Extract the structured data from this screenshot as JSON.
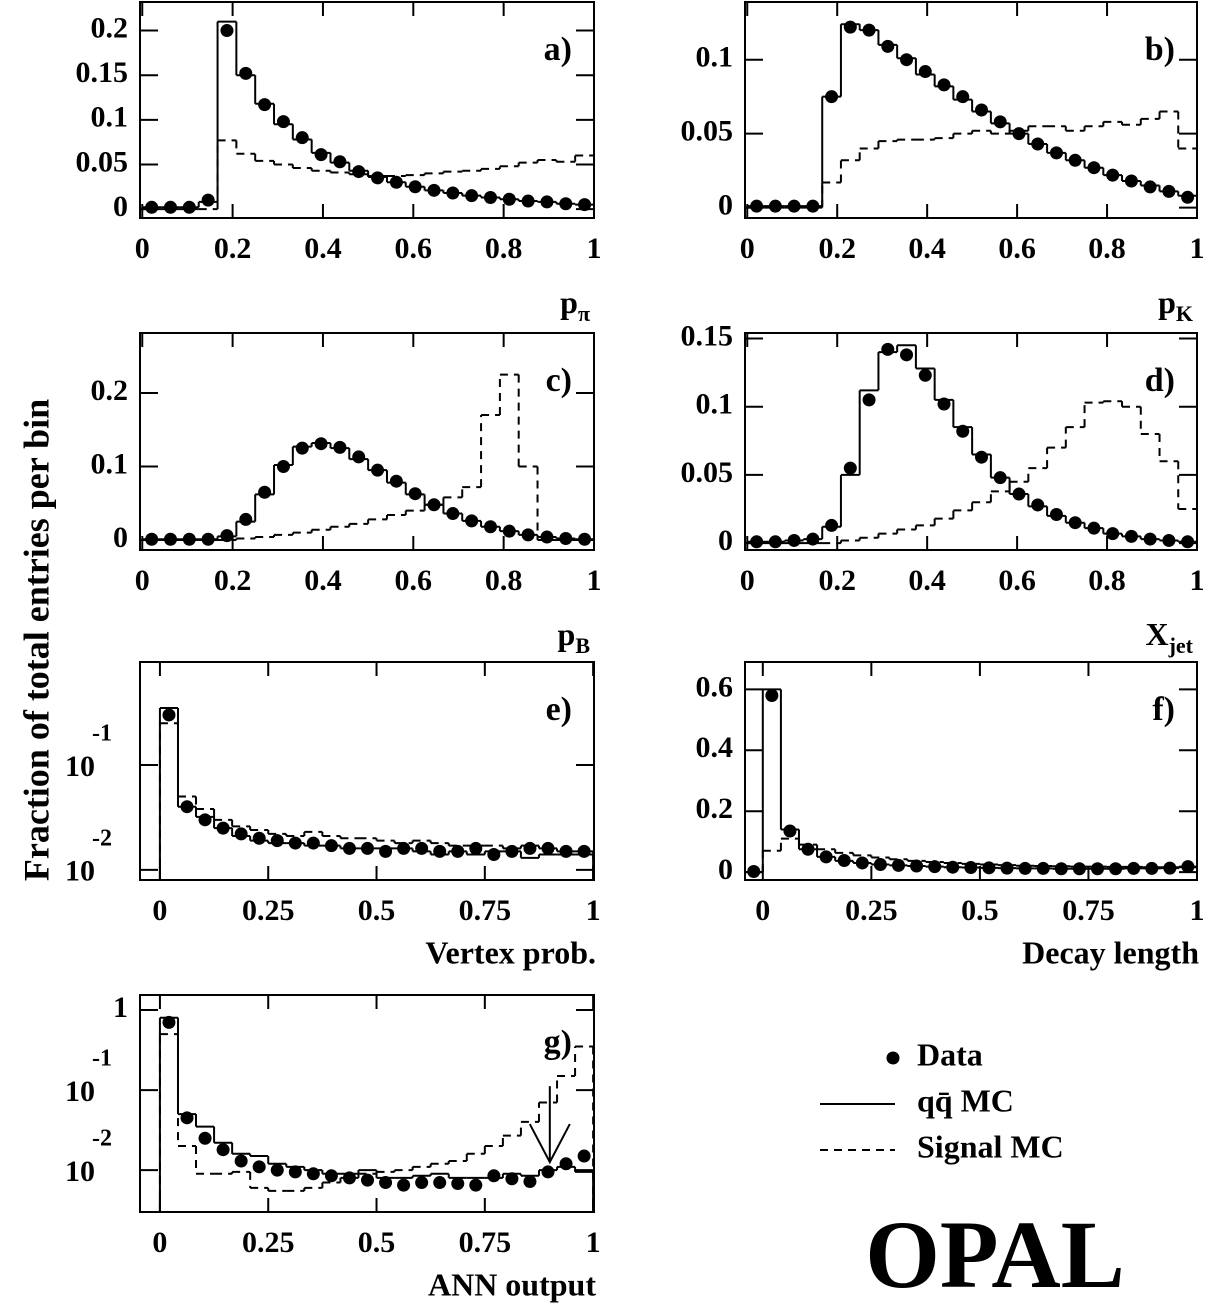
{
  "ylabel": "Fraction of total entries per bin",
  "logo": "OPAL",
  "legend": {
    "entries": [
      "Data",
      "qq̄ MC",
      "Signal MC"
    ],
    "styles": [
      "dot",
      "solid",
      "dashed"
    ]
  },
  "chart_data": [
    {
      "type": "histogram",
      "label": "a)",
      "xlabel": "p",
      "xlabel_sub": "π",
      "ylog": false,
      "xlim": [
        -0.005,
        1
      ],
      "ylim": [
        -0.01,
        0.232
      ],
      "xticks": [
        0,
        0.2,
        0.4,
        0.6,
        0.8,
        1
      ],
      "yticks": [
        0,
        0.05,
        0.1,
        0.15,
        0.2
      ],
      "bins": [
        0,
        0.0417,
        0.0833,
        0.125,
        0.1667,
        0.2083,
        0.25,
        0.2917,
        0.3333,
        0.375,
        0.4167,
        0.4583,
        0.5,
        0.5417,
        0.5833,
        0.625,
        0.6667,
        0.7083,
        0.75,
        0.7917,
        0.8333,
        0.875,
        0.9167,
        0.9583,
        1
      ],
      "series": [
        {
          "values": [
            0.002,
            0.002,
            0.002,
            0.01,
            0.2,
            0.152,
            0.117,
            0.098,
            0.08,
            0.061,
            0.053,
            0.042,
            0.035,
            0.03,
            0.025,
            0.021,
            0.018,
            0.015,
            0.013,
            0.011,
            0.009,
            0.008,
            0.006,
            0.005
          ]
        },
        {
          "values": [
            0.002,
            0.002,
            0.002,
            0.008,
            0.21,
            0.15,
            0.118,
            0.095,
            0.078,
            0.063,
            0.052,
            0.043,
            0.036,
            0.03,
            0.025,
            0.021,
            0.018,
            0.015,
            0.013,
            0.011,
            0.009,
            0.008,
            0.006,
            0.005
          ]
        },
        {
          "values": [
            0,
            0,
            0,
            0,
            0.077,
            0.062,
            0.054,
            0.05,
            0.046,
            0.043,
            0.041,
            0.039,
            0.037,
            0.037,
            0.038,
            0.04,
            0.042,
            0.043,
            0.045,
            0.048,
            0.052,
            0.055,
            0.053,
            0.06
          ]
        }
      ]
    },
    {
      "type": "histogram",
      "label": "b)",
      "xlabel": "p",
      "xlabel_sub": "K",
      "ylog": false,
      "xlim": [
        -0.005,
        1
      ],
      "ylim": [
        -0.007,
        0.139
      ],
      "xticks": [
        0,
        0.2,
        0.4,
        0.6,
        0.8,
        1
      ],
      "yticks": [
        0,
        0.05,
        0.1
      ],
      "bins": [
        0,
        0.0417,
        0.0833,
        0.125,
        0.1667,
        0.2083,
        0.25,
        0.2917,
        0.3333,
        0.375,
        0.4167,
        0.4583,
        0.5,
        0.5417,
        0.5833,
        0.625,
        0.6667,
        0.7083,
        0.75,
        0.7917,
        0.8333,
        0.875,
        0.9167,
        0.9583,
        1
      ],
      "series": [
        {
          "values": [
            0.001,
            0.001,
            0.001,
            0.001,
            0.075,
            0.122,
            0.12,
            0.109,
            0.1,
            0.092,
            0.083,
            0.075,
            0.066,
            0.058,
            0.05,
            0.043,
            0.037,
            0.032,
            0.027,
            0.022,
            0.018,
            0.014,
            0.011,
            0.007
          ]
        },
        {
          "values": [
            0.001,
            0.001,
            0.001,
            0.001,
            0.075,
            0.124,
            0.12,
            0.11,
            0.101,
            0.09,
            0.082,
            0.073,
            0.065,
            0.057,
            0.05,
            0.043,
            0.037,
            0.032,
            0.027,
            0.022,
            0.018,
            0.015,
            0.011,
            0.008
          ]
        },
        {
          "values": [
            0,
            0,
            0,
            0,
            0.017,
            0.032,
            0.04,
            0.045,
            0.046,
            0.046,
            0.047,
            0.05,
            0.052,
            0.05,
            0.052,
            0.055,
            0.055,
            0.052,
            0.055,
            0.058,
            0.056,
            0.06,
            0.065,
            0.04
          ]
        }
      ]
    },
    {
      "type": "histogram",
      "label": "c)",
      "xlabel": "p",
      "xlabel_sub": "B",
      "ylog": false,
      "xlim": [
        -0.005,
        1
      ],
      "ylim": [
        -0.0136,
        0.2816
      ],
      "xticks": [
        0,
        0.2,
        0.4,
        0.6,
        0.8,
        1
      ],
      "yticks": [
        0,
        0.1,
        0.2
      ],
      "bins": [
        0,
        0.0417,
        0.0833,
        0.125,
        0.1667,
        0.2083,
        0.25,
        0.2917,
        0.3333,
        0.375,
        0.4167,
        0.4583,
        0.5,
        0.5417,
        0.5833,
        0.625,
        0.6667,
        0.7083,
        0.75,
        0.7917,
        0.8333,
        0.875,
        0.9167,
        0.9583,
        1
      ],
      "series": [
        {
          "values": [
            0.001,
            0.001,
            0.001,
            0.001,
            0.006,
            0.028,
            0.065,
            0.1,
            0.125,
            0.131,
            0.126,
            0.113,
            0.095,
            0.08,
            0.063,
            0.048,
            0.036,
            0.026,
            0.018,
            0.012,
            0.007,
            0.004,
            0.002,
            0.001
          ]
        },
        {
          "values": [
            0.001,
            0.001,
            0.001,
            0.001,
            0.005,
            0.025,
            0.062,
            0.102,
            0.127,
            0.132,
            0.125,
            0.11,
            0.095,
            0.078,
            0.062,
            0.048,
            0.036,
            0.026,
            0.018,
            0.012,
            0.007,
            0.004,
            0.002,
            0.001
          ]
        },
        {
          "values": [
            0,
            0,
            0,
            0,
            0,
            0.002,
            0.004,
            0.007,
            0.01,
            0.014,
            0.018,
            0.022,
            0.028,
            0.034,
            0.04,
            0.048,
            0.058,
            0.072,
            0.17,
            0.225,
            0.1,
            0,
            0,
            0
          ]
        }
      ]
    },
    {
      "type": "histogram",
      "label": "d)",
      "xlabel": "X",
      "xlabel_sub": "jet",
      "ylog": false,
      "xlim": [
        -0.005,
        1
      ],
      "ylim": [
        -0.005,
        0.154
      ],
      "xticks": [
        0,
        0.2,
        0.4,
        0.6,
        0.8,
        1
      ],
      "yticks": [
        0,
        0.05,
        0.1,
        0.15
      ],
      "bins": [
        0,
        0.0417,
        0.0833,
        0.125,
        0.1667,
        0.2083,
        0.25,
        0.2917,
        0.3333,
        0.375,
        0.4167,
        0.4583,
        0.5,
        0.5417,
        0.5833,
        0.625,
        0.6667,
        0.7083,
        0.75,
        0.7917,
        0.8333,
        0.875,
        0.9167,
        0.9583,
        1
      ],
      "series": [
        {
          "values": [
            0.001,
            0.001,
            0.002,
            0.003,
            0.013,
            0.055,
            0.105,
            0.142,
            0.138,
            0.123,
            0.102,
            0.082,
            0.063,
            0.048,
            0.036,
            0.028,
            0.021,
            0.015,
            0.011,
            0.007,
            0.005,
            0.003,
            0.002,
            0.001
          ]
        },
        {
          "values": [
            0.001,
            0.001,
            0.002,
            0.003,
            0.012,
            0.05,
            0.112,
            0.14,
            0.145,
            0.128,
            0.105,
            0.085,
            0.065,
            0.048,
            0.036,
            0.027,
            0.02,
            0.015,
            0.011,
            0.007,
            0.005,
            0.003,
            0.002,
            0.001
          ]
        },
        {
          "values": [
            0,
            0,
            0,
            0,
            0,
            0.002,
            0.004,
            0.007,
            0.01,
            0.013,
            0.018,
            0.024,
            0.03,
            0.038,
            0.045,
            0.055,
            0.07,
            0.085,
            0.103,
            0.104,
            0.1,
            0.08,
            0.06,
            0.025
          ]
        }
      ]
    },
    {
      "type": "histogram",
      "label": "e)",
      "xlabel": "Vertex prob.",
      "ylog": true,
      "xlim": [
        -0.046,
        1.002
      ],
      "ylim": [
        0.008,
        0.96
      ],
      "xticks": [
        0,
        0.25,
        0.5,
        0.75,
        1
      ],
      "yticks": [
        {
          "value": 0.1,
          "label": "10",
          "exponent": "-1"
        },
        {
          "value": 0.01,
          "label": "10",
          "exponent": "-2"
        }
      ],
      "bins": [
        0,
        0.0417,
        0.0833,
        0.125,
        0.1667,
        0.2083,
        0.25,
        0.2917,
        0.3333,
        0.375,
        0.4167,
        0.4583,
        0.5,
        0.5417,
        0.5833,
        0.625,
        0.6667,
        0.7083,
        0.75,
        0.7917,
        0.8333,
        0.875,
        0.9167,
        0.9583,
        1
      ],
      "series": [
        {
          "values": [
            0.3,
            0.04,
            0.03,
            0.025,
            0.022,
            0.02,
            0.019,
            0.018,
            0.018,
            0.017,
            0.016,
            0.016,
            0.015,
            0.016,
            0.016,
            0.015,
            0.015,
            0.016,
            0.014,
            0.015,
            0.016,
            0.016,
            0.015,
            0.015
          ]
        },
        {
          "values": [
            0.35,
            0.04,
            0.032,
            0.025,
            0.021,
            0.019,
            0.018,
            0.018,
            0.017,
            0.017,
            0.016,
            0.016,
            0.016,
            0.016,
            0.015,
            0.014,
            0.015,
            0.014,
            0.015,
            0.015,
            0.013,
            0.014,
            0.014,
            0.014
          ]
        },
        {
          "values": [
            0.25,
            0.05,
            0.038,
            0.03,
            0.026,
            0.024,
            0.022,
            0.021,
            0.023,
            0.021,
            0.02,
            0.02,
            0.019,
            0.018,
            0.019,
            0.018,
            0.017,
            0.017,
            0.017,
            0.016,
            0.017,
            0.016,
            0.015,
            0.015
          ]
        }
      ]
    },
    {
      "type": "histogram",
      "label": "f)",
      "xlabel": "Decay length",
      "ylog": false,
      "xlim": [
        -0.041,
        1
      ],
      "ylim": [
        -0.026,
        0.69
      ],
      "xticks": [
        0,
        0.25,
        0.5,
        0.75,
        1
      ],
      "yticks": [
        0,
        0.2,
        0.4,
        0.6
      ],
      "bins": [
        -0.0417,
        0,
        0.0417,
        0.0833,
        0.125,
        0.1667,
        0.2083,
        0.25,
        0.2917,
        0.3333,
        0.375,
        0.4167,
        0.4583,
        0.5,
        0.5417,
        0.5833,
        0.625,
        0.6667,
        0.7083,
        0.75,
        0.7917,
        0.8333,
        0.875,
        0.9167,
        0.9583,
        1
      ],
      "series": [
        {
          "values": [
            0.002,
            0.58,
            0.135,
            0.075,
            0.05,
            0.038,
            0.03,
            0.025,
            0.022,
            0.02,
            0.018,
            0.016,
            0.015,
            0.014,
            0.013,
            0.012,
            0.012,
            0.011,
            0.011,
            0.011,
            0.011,
            0.012,
            0.012,
            0.013,
            0.018
          ]
        },
        {
          "values": [
            0,
            0.6,
            0.14,
            0.075,
            0.05,
            0.037,
            0.03,
            0.025,
            0.022,
            0.02,
            0.018,
            0.016,
            0.015,
            0.014,
            0.013,
            0.012,
            0.012,
            0.011,
            0.011,
            0.011,
            0.011,
            0.012,
            0.012,
            0.013,
            0.018
          ]
        },
        {
          "values": [
            0,
            0.07,
            0.11,
            0.09,
            0.075,
            0.063,
            0.055,
            0.048,
            0.042,
            0.037,
            0.033,
            0.03,
            0.027,
            0.025,
            0.023,
            0.021,
            0.02,
            0.019,
            0.018,
            0.018,
            0.017,
            0.017,
            0.016,
            0.016,
            0.016
          ]
        }
      ]
    },
    {
      "type": "histogram",
      "label": "g)",
      "xlabel": "ANN output",
      "ylog": true,
      "cut": 0.9,
      "xlim": [
        -0.046,
        1.002
      ],
      "ylim": [
        0.003,
        1.54
      ],
      "xticks": [
        0,
        0.25,
        0.5,
        0.75,
        1
      ],
      "yticks": [
        1,
        {
          "value": 0.1,
          "label": "10",
          "exponent": "-1"
        },
        {
          "value": 0.01,
          "label": "10",
          "exponent": "-2"
        }
      ],
      "bins": [
        0,
        0.0417,
        0.0833,
        0.125,
        0.1667,
        0.2083,
        0.25,
        0.2917,
        0.3333,
        0.375,
        0.4167,
        0.4583,
        0.5,
        0.5417,
        0.5833,
        0.625,
        0.6667,
        0.7083,
        0.75,
        0.7917,
        0.8333,
        0.875,
        0.9167,
        0.9583,
        1
      ],
      "series": [
        {
          "values": [
            0.7,
            0.045,
            0.025,
            0.018,
            0.013,
            0.011,
            0.01,
            0.0095,
            0.009,
            0.0085,
            0.008,
            0.0075,
            0.007,
            0.0065,
            0.007,
            0.007,
            0.0068,
            0.0065,
            0.0085,
            0.0078,
            0.0072,
            0.0095,
            0.012,
            0.015
          ]
        },
        {
          "values": [
            0.8,
            0.05,
            0.035,
            0.022,
            0.016,
            0.015,
            0.012,
            0.011,
            0.01,
            0.009,
            0.009,
            0.01,
            0.008,
            0.008,
            0.0085,
            0.009,
            0.008,
            0.008,
            0.008,
            0.009,
            0.0085,
            0.01,
            0.011,
            0.0095
          ]
        },
        {
          "values": [
            0.5,
            0.02,
            0.009,
            0.009,
            0.0095,
            0.006,
            0.0055,
            0.0055,
            0.006,
            0.007,
            0.008,
            0.009,
            0.0095,
            0.01,
            0.011,
            0.012,
            0.013,
            0.016,
            0.02,
            0.027,
            0.04,
            0.07,
            0.15,
            0.35
          ]
        }
      ]
    }
  ]
}
